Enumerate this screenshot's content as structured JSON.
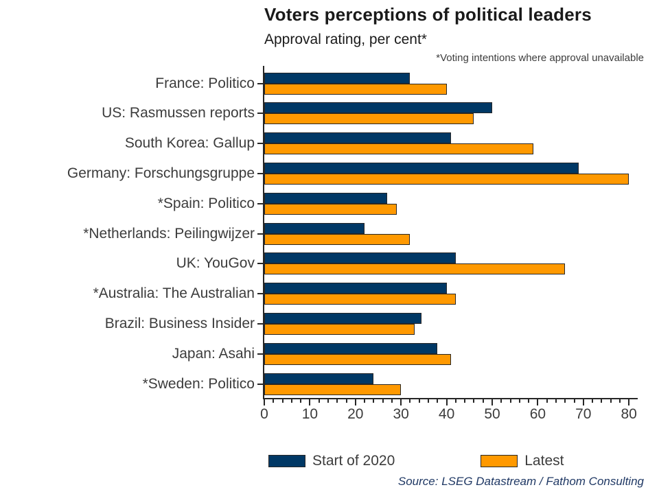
{
  "title": "Voters perceptions of political leaders",
  "subtitle": "Approval rating, per cent*",
  "footnote": "*Voting intentions where approval unavailable",
  "source": "Source: LSEG Datastream / Fathom Consulting",
  "legend": {
    "series1_label": "Start of 2020",
    "series2_label": "Latest"
  },
  "colors": {
    "start_of_2020": "#003865",
    "latest": "#FF9900",
    "bar_border": "#262626",
    "axis": "#262626",
    "label_text": "#3c3c3c",
    "title_text": "#1a1a1a",
    "source_text": "#1f3864"
  },
  "chart_data": {
    "type": "bar",
    "orientation": "horizontal",
    "title": "Voters perceptions of political leaders",
    "subtitle": "Approval rating, per cent*",
    "footnote": "*Voting intentions where approval unavailable",
    "source": "Source: LSEG Datastream / Fathom Consulting",
    "xlabel": "",
    "ylabel": "",
    "xlim": [
      0,
      80
    ],
    "x_major_ticks": [
      0,
      10,
      20,
      30,
      40,
      50,
      60,
      70,
      80
    ],
    "x_minor_tick_step": 2,
    "grid": false,
    "legend_position": "bottom",
    "categories": [
      "France: Politico",
      "US: Rasmussen reports",
      "South Korea: Gallup",
      "Germany: Forschungsgruppe",
      "*Spain: Politico",
      "*Netherlands: Peilingwijzer",
      "UK: YouGov",
      "*Australia: The Australian",
      "Brazil: Business Insider",
      "Japan: Asahi",
      "*Sweden: Politico"
    ],
    "series": [
      {
        "name": "Start of 2020",
        "color": "#003865",
        "values": [
          32,
          50,
          41,
          69,
          27,
          22,
          42,
          40,
          34.5,
          38,
          24
        ]
      },
      {
        "name": "Latest",
        "color": "#FF9900",
        "values": [
          40,
          46,
          59,
          80,
          29,
          32,
          66,
          42,
          33,
          41,
          30
        ]
      }
    ]
  }
}
